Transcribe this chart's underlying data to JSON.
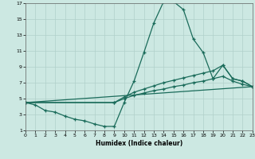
{
  "xlabel": "Humidex (Indice chaleur)",
  "bg_color": "#cce8e2",
  "grid_color": "#b0d0ca",
  "line_color": "#1a6b5a",
  "xlim": [
    0,
    23
  ],
  "ylim": [
    1,
    17
  ],
  "xtick_vals": [
    0,
    1,
    2,
    3,
    4,
    5,
    6,
    7,
    8,
    9,
    10,
    11,
    12,
    13,
    14,
    15,
    16,
    17,
    18,
    19,
    20,
    21,
    22,
    23
  ],
  "ytick_vals": [
    1,
    3,
    5,
    7,
    9,
    11,
    13,
    15,
    17
  ],
  "line1_x": [
    0,
    1,
    2,
    3,
    4,
    5,
    6,
    7,
    8,
    9,
    10,
    11,
    12,
    13,
    14,
    15,
    16,
    17,
    18,
    19,
    20,
    21,
    22,
    23
  ],
  "line1_y": [
    4.5,
    4.2,
    3.5,
    3.3,
    2.8,
    2.4,
    2.2,
    1.8,
    1.5,
    1.5,
    4.5,
    7.2,
    10.8,
    14.5,
    17.2,
    17.2,
    16.2,
    12.5,
    10.8,
    7.5,
    9.2,
    7.5,
    7.2,
    6.5
  ],
  "line2_x": [
    0,
    23
  ],
  "line2_y": [
    4.5,
    6.5
  ],
  "line3_x": [
    0,
    9,
    10,
    11,
    12,
    13,
    14,
    15,
    16,
    17,
    18,
    19,
    20,
    21,
    22,
    23
  ],
  "line3_y": [
    4.5,
    4.5,
    5.2,
    5.8,
    6.2,
    6.6,
    7.0,
    7.3,
    7.6,
    7.9,
    8.2,
    8.5,
    9.2,
    7.5,
    7.2,
    6.5
  ],
  "line4_x": [
    0,
    9,
    10,
    11,
    12,
    13,
    14,
    15,
    16,
    17,
    18,
    19,
    20,
    21,
    22,
    23
  ],
  "line4_y": [
    4.5,
    4.5,
    5.0,
    5.4,
    5.7,
    6.0,
    6.2,
    6.5,
    6.7,
    7.0,
    7.2,
    7.5,
    7.8,
    7.2,
    6.8,
    6.5
  ]
}
